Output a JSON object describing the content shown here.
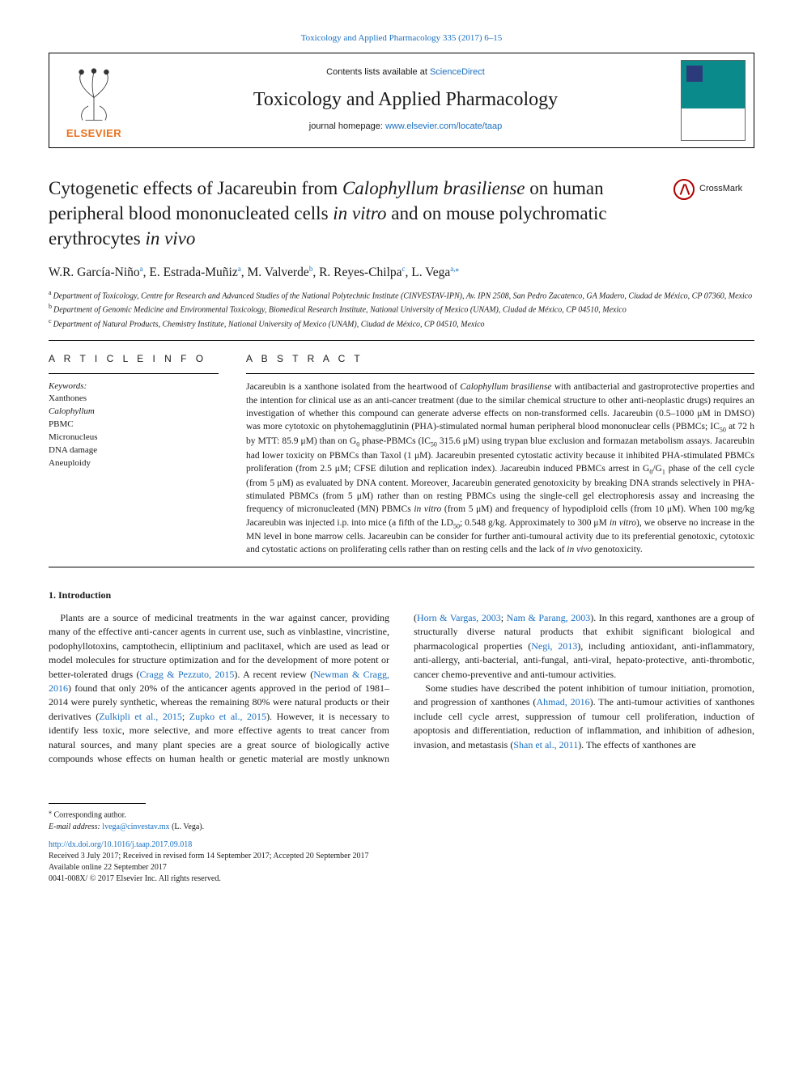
{
  "journal_ref_pre": "Toxicology and Applied Pharmacology 335 (2017) 6–15",
  "header": {
    "contents_pre": "Contents lists available at ",
    "contents_link": "ScienceDirect",
    "journal_name": "Toxicology and Applied Pharmacology",
    "homepage_pre": "journal homepage: ",
    "homepage_link": "www.elsevier.com/locate/taap",
    "publisher_word": "ELSEVIER"
  },
  "crossmark_label": "CrossMark",
  "title_parts": {
    "p1": "Cytogenetic effects of Jacareubin from ",
    "i1": "Calophyllum brasiliense",
    "p2": " on human peripheral blood mononucleated cells ",
    "i2": "in vitro",
    "p3": " and on mouse polychromatic erythrocytes ",
    "i3": "in vivo"
  },
  "authors_html_parts": [
    {
      "t": "W.R. García-Niño",
      "sup": "a"
    },
    {
      "t": ", E. Estrada-Muñiz",
      "sup": "a"
    },
    {
      "t": ", M. Valverde",
      "sup": "b"
    },
    {
      "t": ", R. Reyes-Chilpa",
      "sup": "c"
    },
    {
      "t": ", L. Vega",
      "sup": "a,",
      "star": true
    }
  ],
  "affiliations": [
    {
      "key": "a",
      "text": "Department of Toxicology, Centre for Research and Advanced Studies of the National Polytechnic Institute (CINVESTAV-IPN), Av. IPN 2508, San Pedro Zacatenco, GA Madero, Ciudad de México, CP 07360, Mexico"
    },
    {
      "key": "b",
      "text": "Department of Genomic Medicine and Environmental Toxicology, Biomedical Research Institute, National University of Mexico (UNAM), Ciudad de México, CP 04510, Mexico"
    },
    {
      "key": "c",
      "text": "Department of Natural Products, Chemistry Institute, National University of Mexico (UNAM), Ciudad de México, CP 04510, Mexico"
    }
  ],
  "info_head": "A R T I C L E  I N F O",
  "abs_head": "A B S T R A C T",
  "keywords_label": "Keywords:",
  "keywords": [
    "Xanthones",
    "Calophyllum",
    "PBMC",
    "Micronucleus",
    "DNA damage",
    "Aneuploidy"
  ],
  "keywords_italic_idx": 1,
  "abstract": "Jacareubin is a xanthone isolated from the heartwood of Calophyllum brasiliense with antibacterial and gastroprotective properties and the intention for clinical use as an anti-cancer treatment (due to the similar chemical structure to other anti-neoplastic drugs) requires an investigation of whether this compound can generate adverse effects on non-transformed cells. Jacareubin (0.5–1000 μM in DMSO) was more cytotoxic on phytohemagglutinin (PHA)-stimulated normal human peripheral blood mononuclear cells (PBMCs; IC50 at 72 h by MTT: 85.9 μM) than on G0 phase-PBMCs (IC50 315.6 μM) using trypan blue exclusion and formazan metabolism assays. Jacareubin had lower toxicity on PBMCs than Taxol (1 μM). Jacareubin presented cytostatic activity because it inhibited PHA-stimulated PBMCs proliferation (from 2.5 μM; CFSE dilution and replication index). Jacareubin induced PBMCs arrest in G0/G1 phase of the cell cycle (from 5 μM) as evaluated by DNA content. Moreover, Jacareubin generated genotoxicity by breaking DNA strands selectively in PHA-stimulated PBMCs (from 5 μM) rather than on resting PBMCs using the single-cell gel electrophoresis assay and increasing the frequency of micronucleated (MN) PBMCs in vitro (from 5 μM) and frequency of hypodiploid cells (from 10 μM). When 100 mg/kg Jacareubin was injected i.p. into mice (a fifth of the LD50; 0.548 g/kg. Approximately to 300 μM in vitro), we observe no increase in the MN level in bone marrow cells. Jacareubin can be consider for further anti-tumoural activity due to its preferential genotoxic, cytotoxic and cytostatic actions on proliferating cells rather than on resting cells and the lack of in vivo genotoxicity.",
  "intro_head": "1. Introduction",
  "intro_paras": [
    "Plants are a source of medicinal treatments in the war against cancer, providing many of the effective anti-cancer agents in current use, such as vinblastine, vincristine, podophyllotoxins, camptothecin, elliptinium and paclitaxel, which are used as lead or model molecules for structure optimization and for the development of more potent or better-tolerated drugs (Cragg & Pezzuto, 2015). A recent review (Newman & Cragg, 2016) found that only 20% of the anticancer agents approved in the period of 1981–2014 were purely synthetic, whereas the remaining 80% were natural products or their derivatives (Zulkipli et al., 2015; Zupko et al., 2015). However, it is necessary to identify less toxic, more selective, and more effective agents to treat cancer from natural sources, and many plant species are a great source of biologically active compounds whose effects on human health or genetic material are mostly unknown (Horn & Vargas, 2003; Nam & Parang, 2003). In this regard, xanthones are a group of structurally diverse natural products that exhibit significant biological and pharmacological properties (Negi, 2013), including antioxidant, anti-inflammatory, anti-allergy, anti-bacterial, anti-fungal, anti-viral, hepato-protective, anti-thrombotic, cancer chemo-preventive and anti-tumour activities.",
    "Some studies have described the potent inhibition of tumour initiation, promotion, and progression of xanthones (Ahmad, 2016). The anti-tumour activities of xanthones include cell cycle arrest, suppression of tumour cell proliferation, induction of apoptosis and differentiation, reduction of inflammation, and inhibition of adhesion, invasion, and metastasis (Shan et al., 2011). The effects of xanthones are"
  ],
  "footer": {
    "corr_label": "Corresponding author.",
    "email_label": "E-mail address:",
    "email": "lvega@cinvestav.mx",
    "email_who": "(L. Vega).",
    "doi": "http://dx.doi.org/10.1016/j.taap.2017.09.018",
    "history": "Received 3 July 2017; Received in revised form 14 September 2017; Accepted 20 September 2017",
    "avail": "Available online 22 September 2017",
    "copyright": "0041-008X/ © 2017 Elsevier Inc. All rights reserved."
  },
  "colors": {
    "link": "#1a6fc0",
    "elsevier_orange": "#e9711c",
    "crossmark_red": "#b00000",
    "cover_teal": "#0a8a8a"
  }
}
